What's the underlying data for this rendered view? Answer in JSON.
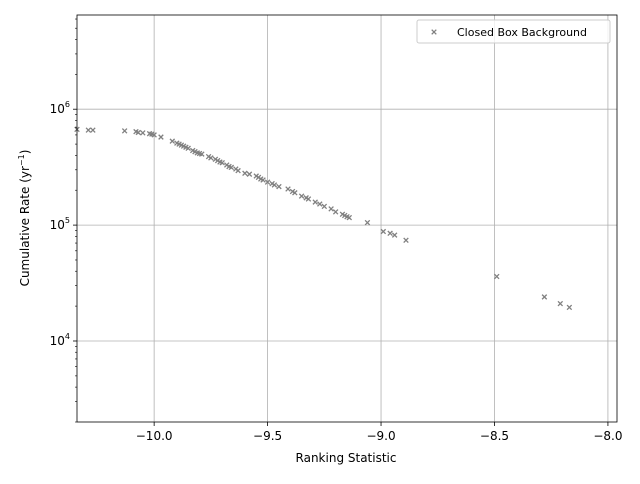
{
  "chart_data": {
    "type": "scatter",
    "title": "",
    "xlabel": "Ranking Statistic",
    "ylabel_main": "Cumulative Rate (yr",
    "ylabel_sup": "−1",
    "ylabel_close": ")",
    "x_scale": "linear",
    "y_scale": "log",
    "xlim": [
      -10.34,
      -7.96
    ],
    "ylim": [
      2000,
      6500000
    ],
    "grid": true,
    "legend_position": "top-right",
    "x_ticks": [
      {
        "value": -10.0,
        "label": "−10.0"
      },
      {
        "value": -9.5,
        "label": "−9.5"
      },
      {
        "value": -9.0,
        "label": "−9.0"
      },
      {
        "value": -8.5,
        "label": "−8.5"
      },
      {
        "value": -8.0,
        "label": "−8.0"
      }
    ],
    "y_ticks": [
      {
        "value": 10000,
        "base": "10",
        "exp": "4"
      },
      {
        "value": 100000,
        "base": "10",
        "exp": "5"
      },
      {
        "value": 1000000,
        "base": "10",
        "exp": "6"
      }
    ],
    "series": [
      {
        "name": "Closed Box Background",
        "marker": "x",
        "color": "#808080",
        "points": [
          [
            -10.34,
            670000
          ],
          [
            -10.29,
            660000
          ],
          [
            -10.27,
            660000
          ],
          [
            -10.13,
            650000
          ],
          [
            -10.08,
            640000
          ],
          [
            -10.07,
            630000
          ],
          [
            -10.05,
            625000
          ],
          [
            -10.02,
            615000
          ],
          [
            -10.01,
            610000
          ],
          [
            -10.0,
            600000
          ],
          [
            -9.97,
            575000
          ],
          [
            -9.92,
            530000
          ],
          [
            -9.9,
            510000
          ],
          [
            -9.89,
            500000
          ],
          [
            -9.88,
            490000
          ],
          [
            -9.87,
            480000
          ],
          [
            -9.86,
            470000
          ],
          [
            -9.85,
            460000
          ],
          [
            -9.83,
            440000
          ],
          [
            -9.82,
            430000
          ],
          [
            -9.81,
            420000
          ],
          [
            -9.8,
            415000
          ],
          [
            -9.79,
            410000
          ],
          [
            -9.76,
            390000
          ],
          [
            -9.75,
            380000
          ],
          [
            -9.73,
            370000
          ],
          [
            -9.72,
            360000
          ],
          [
            -9.71,
            350000
          ],
          [
            -9.7,
            345000
          ],
          [
            -9.68,
            330000
          ],
          [
            -9.67,
            320000
          ],
          [
            -9.66,
            315000
          ],
          [
            -9.64,
            305000
          ],
          [
            -9.63,
            295000
          ],
          [
            -9.6,
            280000
          ],
          [
            -9.58,
            275000
          ],
          [
            -9.55,
            265000
          ],
          [
            -9.54,
            258000
          ],
          [
            -9.53,
            250000
          ],
          [
            -9.52,
            245000
          ],
          [
            -9.5,
            235000
          ],
          [
            -9.48,
            228000
          ],
          [
            -9.47,
            222000
          ],
          [
            -9.45,
            215000
          ],
          [
            -9.41,
            205000
          ],
          [
            -9.39,
            195000
          ],
          [
            -9.38,
            190000
          ],
          [
            -9.35,
            178000
          ],
          [
            -9.33,
            172000
          ],
          [
            -9.32,
            168000
          ],
          [
            -9.29,
            158000
          ],
          [
            -9.27,
            152000
          ],
          [
            -9.25,
            145000
          ],
          [
            -9.22,
            138000
          ],
          [
            -9.2,
            130000
          ],
          [
            -9.17,
            124000
          ],
          [
            -9.16,
            121000
          ],
          [
            -9.15,
            118000
          ],
          [
            -9.14,
            116000
          ],
          [
            -9.06,
            105000
          ],
          [
            -8.99,
            88000
          ],
          [
            -8.96,
            85000
          ],
          [
            -8.94,
            82000
          ],
          [
            -8.89,
            74000
          ],
          [
            -8.49,
            36000
          ],
          [
            -8.28,
            24000
          ],
          [
            -8.21,
            21000
          ],
          [
            -8.17,
            19500
          ]
        ]
      }
    ]
  }
}
